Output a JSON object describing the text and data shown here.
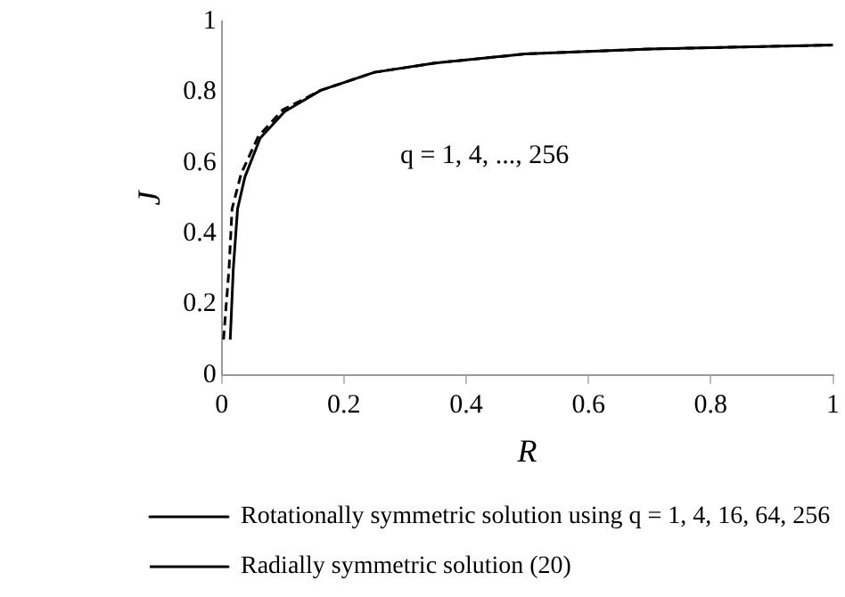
{
  "chart_data": {
    "type": "line",
    "xlabel": "R",
    "ylabel": "J",
    "xlim": [
      0,
      1
    ],
    "ylim": [
      0,
      1
    ],
    "xticks": [
      0,
      0.2,
      0.4,
      0.6,
      0.8,
      1
    ],
    "yticks": [
      0,
      0.2,
      0.4,
      0.6,
      0.8,
      1
    ],
    "grid": false,
    "legend": "bottom",
    "marker": "none",
    "annotations": [
      "q = 1, 4, ..., 256"
    ],
    "series": [
      {
        "name": "Rotationally symmetric solution using q = 1, 4, 16, 64, 256",
        "color": "#000000",
        "line_style": "solid",
        "x": [
          0.014,
          0.019,
          0.026,
          0.038,
          0.063,
          0.103,
          0.162,
          0.25,
          0.349,
          0.497,
          0.7,
          1
        ],
        "values": [
          0.1,
          0.3,
          0.47,
          0.56,
          0.67,
          0.745,
          0.805,
          0.856,
          0.882,
          0.908,
          0.922,
          0.933
        ]
      },
      {
        "name": "Radially symmetric solution (20)",
        "color": "#000000",
        "line_style": "dashed",
        "x": [
          0.003,
          0.012,
          0.017,
          0.032,
          0.06,
          0.1,
          0.162,
          0.25,
          0.349,
          0.497,
          0.7,
          1
        ],
        "values": [
          0.1,
          0.3,
          0.47,
          0.57,
          0.675,
          0.75,
          0.805,
          0.856,
          0.882,
          0.908,
          0.922,
          0.933
        ]
      }
    ]
  }
}
